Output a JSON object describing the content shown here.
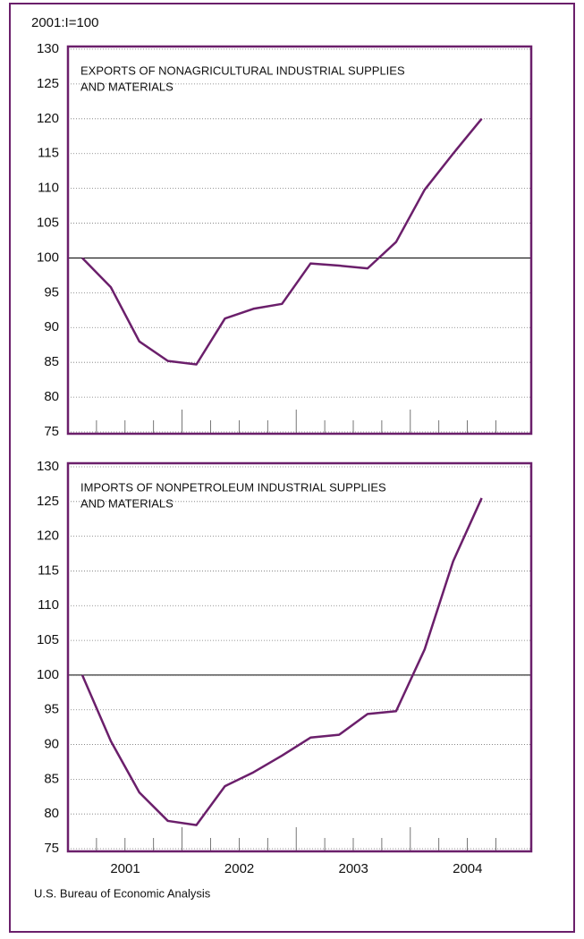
{
  "unit_label": "2001:I=100",
  "source": "U.S. Bureau of Economic Analysis",
  "chart_data": [
    {
      "type": "line",
      "title": [
        "EXPORTS OF NONAGRICULTURAL INDUSTRIAL SUPPLIES",
        "AND MATERIALS"
      ],
      "values": [
        100,
        95.8,
        88,
        85.2,
        84.7,
        91.3,
        92.7,
        93.4,
        99.2,
        98.9,
        98.5,
        102.3,
        109.8,
        115,
        120
      ],
      "color": "#6b1f6b",
      "ylim": [
        75,
        130
      ],
      "yticks": [
        75,
        80,
        85,
        90,
        95,
        100,
        105,
        110,
        115,
        120,
        125,
        130
      ],
      "reference_line": 100,
      "grid": true
    },
    {
      "type": "line",
      "title": [
        "IMPORTS OF NONPETROLEUM INDUSTRIAL SUPPLIES",
        "AND MATERIALS"
      ],
      "values": [
        100,
        90.5,
        83.1,
        79,
        78.4,
        84,
        86,
        88.4,
        91,
        91.4,
        94.4,
        94.8,
        103.7,
        116.4,
        125.5
      ],
      "color": "#6b1f6b",
      "ylim": [
        75,
        130
      ],
      "yticks": [
        75,
        80,
        85,
        90,
        95,
        100,
        105,
        110,
        115,
        120,
        125,
        130
      ],
      "reference_line": 100,
      "grid": true,
      "year_labels": [
        "2001",
        "2002",
        "2003",
        "2004"
      ]
    }
  ]
}
